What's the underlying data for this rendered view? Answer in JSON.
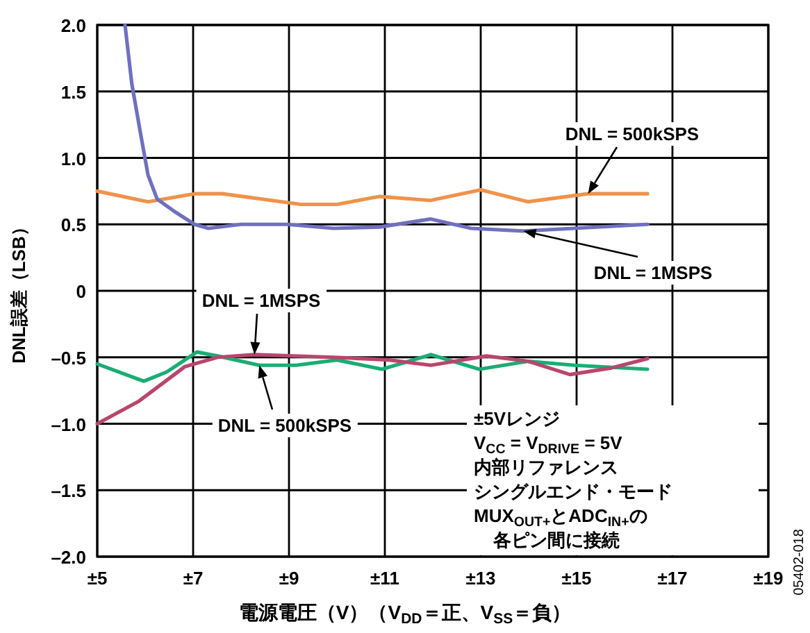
{
  "chart_data": {
    "type": "line",
    "xlabel": "電源電圧（V）（V$_{DD}$＝正、V$_{SS}$＝負）",
    "ylabel": "DNL誤差（LSB）",
    "xlim": [
      5,
      19
    ],
    "ylim": [
      -2,
      2
    ],
    "xticks": [
      {
        "value": 5,
        "label": "±5"
      },
      {
        "value": 7,
        "label": "±7"
      },
      {
        "value": 9,
        "label": "±9"
      },
      {
        "value": 11,
        "label": "±11"
      },
      {
        "value": 13,
        "label": "±13"
      },
      {
        "value": 15,
        "label": "±15"
      },
      {
        "value": 17,
        "label": "±17"
      },
      {
        "value": 19,
        "label": "±19"
      }
    ],
    "yticks": [
      {
        "value": -2,
        "label": "–2.0"
      },
      {
        "value": -1.5,
        "label": "–1.5"
      },
      {
        "value": -1,
        "label": "–1.0"
      },
      {
        "value": -0.5,
        "label": "–0.5"
      },
      0,
      {
        "value": 0.5,
        "label": "0.5"
      },
      {
        "value": 1,
        "label": "1.0"
      },
      {
        "value": 1.5,
        "label": "1.5"
      },
      {
        "value": 2,
        "label": "2.0"
      }
    ],
    "grid": true,
    "series": [
      {
        "name": "DNL = 500kSPS",
        "color": "#f0924a",
        "x": [
          5.0,
          6.06,
          7.03,
          7.61,
          9.25,
          10.0,
          10.89,
          11.95,
          13.0,
          13.99,
          15.24,
          16.48
        ],
        "values": [
          0.75,
          0.67,
          0.73,
          0.73,
          0.65,
          0.65,
          0.71,
          0.68,
          0.76,
          0.67,
          0.73,
          0.73
        ]
      },
      {
        "name": "DNL = 1MSPS",
        "color": "#7070c0",
        "x": [
          5.58,
          5.72,
          5.91,
          6.06,
          6.25,
          6.64,
          7.03,
          7.32,
          8.0,
          8.96,
          9.93,
          10.89,
          11.95,
          12.8,
          13.89,
          14.95,
          16.48
        ],
        "values": [
          2.0,
          1.56,
          1.17,
          0.87,
          0.69,
          0.59,
          0.5,
          0.47,
          0.5,
          0.5,
          0.47,
          0.48,
          0.54,
          0.47,
          0.45,
          0.47,
          0.5
        ]
      },
      {
        "name": "DNL = 500kSPS",
        "color": "#1aad74",
        "x": [
          5.0,
          5.97,
          6.45,
          7.08,
          7.51,
          8.38,
          9.15,
          10.0,
          10.94,
          11.96,
          12.97,
          13.99,
          14.95,
          16.48
        ],
        "values": [
          -0.55,
          -0.68,
          -0.61,
          -0.46,
          -0.49,
          -0.56,
          -0.56,
          -0.52,
          -0.59,
          -0.48,
          -0.59,
          -0.53,
          -0.56,
          -0.59
        ]
      },
      {
        "name": "DNL = 1MSPS",
        "color": "#b8466e",
        "x": [
          5.0,
          5.87,
          6.83,
          7.51,
          8.28,
          9.93,
          11.09,
          11.96,
          13.12,
          13.99,
          14.86,
          15.73,
          16.48
        ],
        "values": [
          -1.0,
          -0.83,
          -0.57,
          -0.5,
          -0.48,
          -0.5,
          -0.52,
          -0.56,
          -0.49,
          -0.53,
          -0.63,
          -0.58,
          -0.51
        ]
      }
    ],
    "annotations": [
      "±5Vレンジ",
      "V$_{CC}$ = V$_{DRIVE}$ = 5V",
      "内部リファレンス",
      "シングルエンド・モード",
      "MUX$_{OUT+}$とADC$_{IN+}$の",
      "各ピン間に接続",
      "05402-018"
    ]
  }
}
